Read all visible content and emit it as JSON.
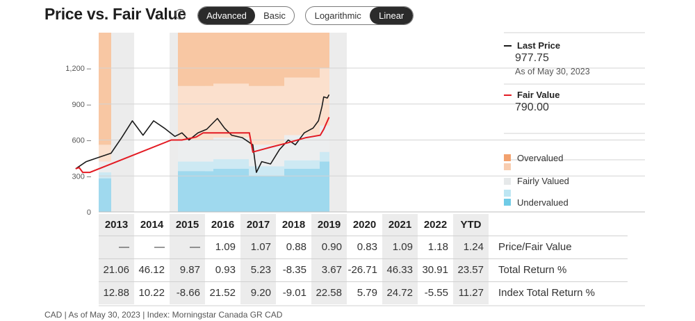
{
  "header": {
    "title": "Price vs. Fair Value",
    "info_icon": "info-icon",
    "mode_toggle": [
      {
        "label": "Advanced",
        "active": true
      },
      {
        "label": "Basic",
        "active": false
      }
    ],
    "scale_toggle": [
      {
        "label": "Logarithmic",
        "active": false
      },
      {
        "label": "Linear",
        "active": true
      }
    ]
  },
  "legend": {
    "last_price": {
      "label": "Last Price",
      "value": "977.75",
      "as_of": "As of May 30, 2023",
      "color": "#1a1a1a"
    },
    "fair_value": {
      "label": "Fair Value",
      "value": "790.00",
      "color": "#e31b23"
    },
    "keys": [
      {
        "label": "Overvalued",
        "color": "#f2a16e"
      },
      {
        "label": "Fairly Valued",
        "color": "#e6e9ea"
      },
      {
        "label": "Undervalued",
        "color": "#6fcbe6"
      }
    ]
  },
  "chart_data": {
    "type": "line",
    "ylim": [
      0,
      1400
    ],
    "yticks": [
      0,
      300,
      600,
      900,
      1200
    ],
    "ytick_labels": [
      "0",
      "300 –",
      "600 –",
      "900 –",
      "1,200 –"
    ],
    "categories": [
      "2013",
      "2014",
      "2015",
      "2016",
      "2017",
      "2018",
      "2019",
      "2020",
      "2021",
      "2022",
      "YTD"
    ],
    "shaded_years": [
      "2013",
      "2015",
      "2017",
      "2019"
    ],
    "series": [
      {
        "name": "Last Price",
        "color": "#1a1a1a",
        "x": [
          2012.0,
          2012.3,
          2012.6,
          2013.0,
          2013.3,
          2013.6,
          2013.9,
          2014.2,
          2014.5,
          2014.8,
          2015.0,
          2015.2,
          2015.45,
          2015.7,
          2016.0,
          2016.2,
          2016.4,
          2016.7,
          2017.0,
          2017.1,
          2017.25,
          2017.5,
          2017.75,
          2018.0,
          2018.2,
          2018.45,
          2018.7,
          2018.85,
          2018.95,
          2019.0,
          2019.1,
          2019.15
        ],
        "y": [
          360,
          420,
          450,
          490,
          620,
          760,
          640,
          760,
          700,
          630,
          660,
          600,
          660,
          690,
          780,
          700,
          640,
          620,
          560,
          330,
          420,
          400,
          520,
          600,
          560,
          660,
          700,
          760,
          880,
          960,
          950,
          978
        ]
      },
      {
        "name": "Fair Value",
        "color": "#e31b23",
        "x": [
          2012.0,
          2012.1,
          2012.2,
          2012.4,
          2014.7,
          2015.0,
          2015.4,
          2015.6,
          2016.0,
          2016.9,
          2017.0,
          2017.5,
          2017.9,
          2018.5,
          2018.9,
          2019.0,
          2019.15
        ],
        "y": [
          360,
          370,
          330,
          330,
          600,
          600,
          625,
          660,
          660,
          660,
          500,
          540,
          570,
          620,
          640,
          690,
          790
        ]
      }
    ],
    "valuation_bands": [
      {
        "year": "2012",
        "under": 280,
        "fair_low": 330,
        "fair_high": 420,
        "over": 560
      },
      {
        "year": "2015",
        "under": 340,
        "fair_low": 420,
        "fair_high": 600,
        "over": 1050
      },
      {
        "year": "2016",
        "under": 360,
        "fair_low": 440,
        "fair_high": 620,
        "over": 1070
      },
      {
        "year": "2017",
        "under": 300,
        "fair_low": 380,
        "fair_high": 560,
        "over": 1050
      },
      {
        "year": "2018",
        "under": 360,
        "fair_low": 430,
        "fair_high": 640,
        "over": 1120
      },
      {
        "year": "2019",
        "under": 420,
        "fair_low": 500,
        "fair_high": 720,
        "over": 1200
      }
    ]
  },
  "table": {
    "columns": [
      "2013",
      "2014",
      "2015",
      "2016",
      "2017",
      "2018",
      "2019",
      "2020",
      "2021",
      "2022",
      "YTD"
    ],
    "rows": [
      {
        "label": "Price/Fair Value",
        "values": [
          "—",
          "—",
          "—",
          "1.09",
          "1.07",
          "0.88",
          "0.90",
          "0.83",
          "1.09",
          "1.18",
          "1.24"
        ]
      },
      {
        "label": "Total Return %",
        "values": [
          "21.06",
          "46.12",
          "9.87",
          "0.93",
          "5.23",
          "-8.35",
          "3.67",
          "-26.71",
          "46.33",
          "30.91",
          "23.57"
        ]
      },
      {
        "label": "Index Total Return %",
        "values": [
          "12.88",
          "10.22",
          "-8.66",
          "21.52",
          "9.20",
          "-9.01",
          "22.58",
          "5.79",
          "24.72",
          "-5.55",
          "11.27"
        ]
      }
    ]
  },
  "footnote": "CAD | As of May 30, 2023 | Index: Morningstar Canada GR CAD"
}
